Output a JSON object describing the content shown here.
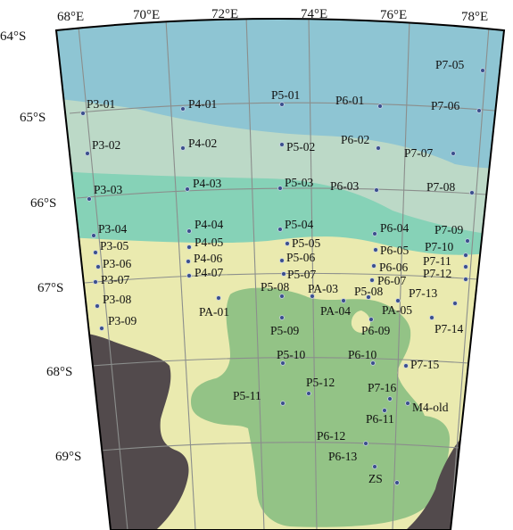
{
  "colors": {
    "frame": "#000000",
    "ocean_deep": "#8ec5d3",
    "ocean_mid": "#bcd9c7",
    "ocean_shelf": "#86d2b7",
    "sea_ice_shelf": "#eaeaaf",
    "land": "#524a4c",
    "basin": "#93c386",
    "grid": "#8b8e8c",
    "station": "#3a4e8c"
  },
  "longitude_labels": [
    "68°E",
    "70°E",
    "72°E",
    "74°E",
    "76°E",
    "78°E"
  ],
  "latitude_labels": [
    "64°S",
    "65°S",
    "66°S",
    "67°S",
    "68°S",
    "69°S"
  ],
  "stations": [
    {
      "name": "P7-05"
    },
    {
      "name": "P3-01"
    },
    {
      "name": "P4-01"
    },
    {
      "name": "P5-01"
    },
    {
      "name": "P6-01"
    },
    {
      "name": "P7-06"
    },
    {
      "name": "P3-02"
    },
    {
      "name": "P4-02"
    },
    {
      "name": "P5-02"
    },
    {
      "name": "P6-02"
    },
    {
      "name": "P7-07"
    },
    {
      "name": "P3-03"
    },
    {
      "name": "P4-03"
    },
    {
      "name": "P5-03"
    },
    {
      "name": "P6-03"
    },
    {
      "name": "P7-08"
    },
    {
      "name": "P3-04"
    },
    {
      "name": "P4-04"
    },
    {
      "name": "P5-04"
    },
    {
      "name": "P6-04"
    },
    {
      "name": "P7-09"
    },
    {
      "name": "P3-05"
    },
    {
      "name": "P4-05"
    },
    {
      "name": "P5-05"
    },
    {
      "name": "P6-05"
    },
    {
      "name": "P7-10"
    },
    {
      "name": "P3-06"
    },
    {
      "name": "P4-06"
    },
    {
      "name": "P5-06"
    },
    {
      "name": "P6-06"
    },
    {
      "name": "P7-11"
    },
    {
      "name": "P3-07"
    },
    {
      "name": "P4-07"
    },
    {
      "name": "P5-07"
    },
    {
      "name": "P6-07"
    },
    {
      "name": "P7-12"
    },
    {
      "name": "P3-08"
    },
    {
      "name": "P5-08"
    },
    {
      "name": "PA-03"
    },
    {
      "name": "P5-08"
    },
    {
      "name": "P7-13"
    },
    {
      "name": "PA-01"
    },
    {
      "name": "PA-04"
    },
    {
      "name": "PA-05"
    },
    {
      "name": "P3-09"
    },
    {
      "name": "P5-09"
    },
    {
      "name": "P6-09"
    },
    {
      "name": "P7-14"
    },
    {
      "name": "P5-10"
    },
    {
      "name": "P6-10"
    },
    {
      "name": "P7-15"
    },
    {
      "name": "P5-12"
    },
    {
      "name": "P7-16"
    },
    {
      "name": "P5-11"
    },
    {
      "name": "M4-old"
    },
    {
      "name": "P6-11"
    },
    {
      "name": "P6-12"
    },
    {
      "name": "P6-13"
    },
    {
      "name": "ZS"
    }
  ]
}
